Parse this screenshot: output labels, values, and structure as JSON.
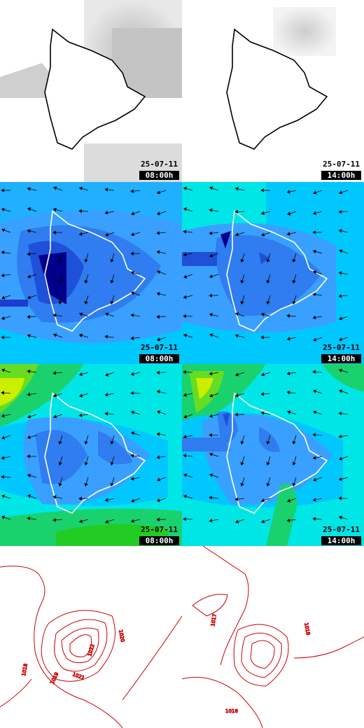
{
  "panels": [
    {
      "row": "cloud",
      "col": 0,
      "date": "25-07-11",
      "time": "08:00h"
    },
    {
      "row": "cloud",
      "col": 1,
      "date": "25-07-11",
      "time": "14:00h"
    },
    {
      "row": "wind10",
      "col": 0,
      "date": "25-07-11",
      "time": "08:00h"
    },
    {
      "row": "wind10",
      "col": 1,
      "date": "25-07-11",
      "time": "14:00h"
    },
    {
      "row": "wind80",
      "col": 0,
      "date": "25-07-11",
      "time": "08:00h"
    },
    {
      "row": "wind80",
      "col": 1,
      "date": "25-07-11",
      "time": "14:00h"
    }
  ],
  "pressure_labels_left": [
    "1020",
    "1022",
    "1021",
    "1019",
    "1018"
  ],
  "pressure_labels_right": [
    "1017",
    "1018",
    "1016"
  ],
  "colors": {
    "coast_cloud": "#000000",
    "coast_wind": "#ffffff",
    "isobar": "#cc0000",
    "wind_scale": [
      "#00008b",
      "#1e50d8",
      "#2f7df0",
      "#3aa0ff",
      "#00ffff",
      "#00e6b0",
      "#19d26e",
      "#66dd22",
      "#ccee00"
    ]
  }
}
